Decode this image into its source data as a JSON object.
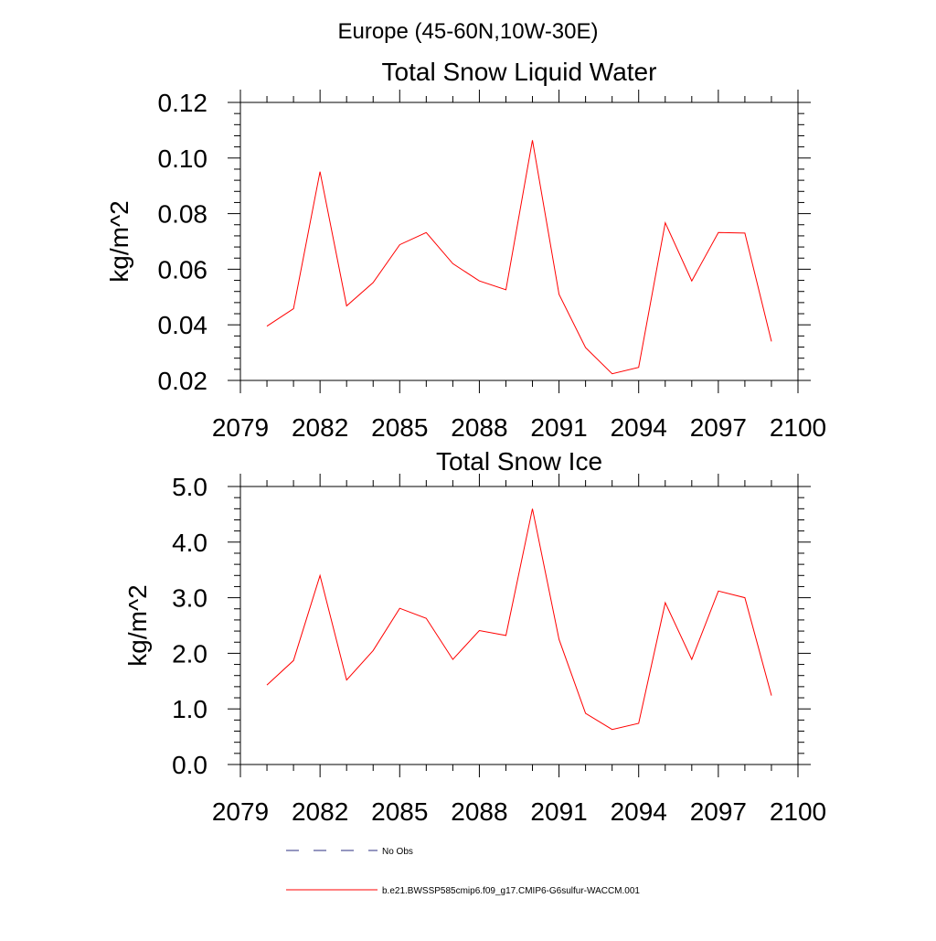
{
  "figure": {
    "title": "Europe (45-60N,10W-30E)"
  },
  "colors": {
    "series": "#ff0000",
    "obs": "#2b2f80",
    "axis": "#000000"
  },
  "legend": {
    "entries": [
      {
        "label": "No Obs",
        "style": "dashed",
        "color": "#2b2f80"
      },
      {
        "label": "b.e21.BWSSP585cmip6.f09_g17.CMIP6-G6sulfur-WACCM.001",
        "style": "solid",
        "color": "#ff0000"
      }
    ]
  },
  "chart_data": [
    {
      "type": "line",
      "title": "Total Snow Liquid Water",
      "xlabel": "",
      "ylabel": "kg/m^2",
      "xlim": [
        2079,
        2100
      ],
      "ylim": [
        0.02,
        0.12
      ],
      "xticks": [
        "2079",
        "2082",
        "2085",
        "2088",
        "2091",
        "2094",
        "2097",
        "2100"
      ],
      "yticks": [
        "0.02",
        "0.04",
        "0.06",
        "0.08",
        "0.10",
        "0.12"
      ],
      "grid": false,
      "series": [
        {
          "name": "b.e21.BWSSP585cmip6.f09_g17.CMIP6-G6sulfur-WACCM.001",
          "x": [
            2080,
            2081,
            2082,
            2083,
            2084,
            2085,
            2086,
            2087,
            2088,
            2089,
            2090,
            2091,
            2092,
            2093,
            2094,
            2095,
            2096,
            2097,
            2098,
            2099
          ],
          "values": [
            0.0395,
            0.0458,
            0.0951,
            0.0468,
            0.0552,
            0.0688,
            0.0732,
            0.062,
            0.0558,
            0.0526,
            0.1064,
            0.051,
            0.0318,
            0.0224,
            0.0247,
            0.0767,
            0.0558,
            0.0732,
            0.073,
            0.034
          ]
        }
      ]
    },
    {
      "type": "line",
      "title": "Total Snow Ice",
      "xlabel": "",
      "ylabel": "kg/m^2",
      "xlim": [
        2079,
        2100
      ],
      "ylim": [
        0.0,
        5.0
      ],
      "xticks": [
        "2079",
        "2082",
        "2085",
        "2088",
        "2091",
        "2094",
        "2097",
        "2100"
      ],
      "yticks": [
        "0.0",
        "1.0",
        "2.0",
        "3.0",
        "4.0",
        "5.0"
      ],
      "grid": false,
      "series": [
        {
          "name": "b.e21.BWSSP585cmip6.f09_g17.CMIP6-G6sulfur-WACCM.001",
          "x": [
            2080,
            2081,
            2082,
            2083,
            2084,
            2085,
            2086,
            2087,
            2088,
            2089,
            2090,
            2091,
            2092,
            2093,
            2094,
            2095,
            2096,
            2097,
            2098,
            2099
          ],
          "values": [
            1.43,
            1.87,
            3.4,
            1.52,
            2.05,
            2.81,
            2.63,
            1.89,
            2.41,
            2.32,
            4.6,
            2.25,
            0.92,
            0.63,
            0.74,
            2.91,
            1.89,
            3.12,
            3.0,
            1.24
          ]
        }
      ]
    }
  ]
}
